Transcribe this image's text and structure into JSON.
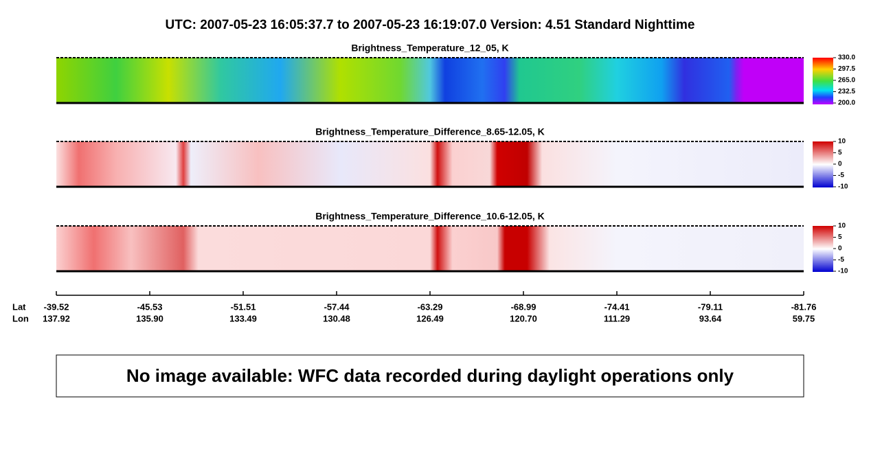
{
  "header": {
    "title": "UTC:  2007-05-23   16:05:37.7  to  2007-05-23   16:19:07.0    Version: 4.51  Standard Nighttime"
  },
  "panels": [
    {
      "title": "Brightness_Temperature_12_05, K",
      "colorbar_ticks": [
        "330.0",
        "297.5",
        "265.0",
        "232.5",
        "200.0"
      ]
    },
    {
      "title": "Brightness_Temperature_Difference_8.65-12.05, K",
      "colorbar_ticks": [
        "10",
        "5",
        "0",
        "-5",
        "-10"
      ]
    },
    {
      "title": "Brightness_Temperature_Difference_10.6-12.05, K",
      "colorbar_ticks": [
        "10",
        "5",
        "0",
        "-5",
        "-10"
      ]
    }
  ],
  "axis": {
    "lat_label": "Lat",
    "lon_label": "Lon",
    "lat": [
      "-39.52",
      "-45.53",
      "-51.51",
      "-57.44",
      "-63.29",
      "-68.99",
      "-74.41",
      "-79.11",
      "-81.76"
    ],
    "lon": [
      "137.92",
      "135.90",
      "133.49",
      "130.48",
      "126.49",
      "120.70",
      "111.29",
      "93.64",
      "59.75"
    ]
  },
  "message": "No image available: WFC data recorded during daylight operations only"
}
